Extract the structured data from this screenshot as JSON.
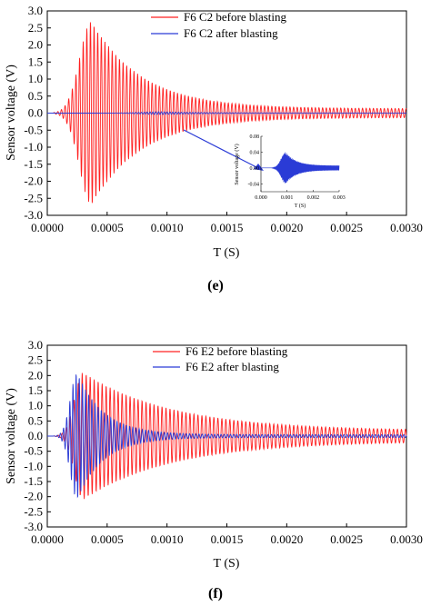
{
  "chart_data": [
    {
      "type": "line",
      "panel": "(e)",
      "xlabel": "T (S)",
      "ylabel": "Sensor voltage (V)",
      "xlim": [
        0,
        0.003
      ],
      "ylim": [
        -3.0,
        3.0
      ],
      "xticks": [
        "0.0000",
        "0.0005",
        "0.0010",
        "0.0015",
        "0.0020",
        "0.0025",
        "0.0030"
      ],
      "yticks": [
        "3.0",
        "2.5",
        "2.0",
        "1.5",
        "1.0",
        "0.5",
        "0.0",
        "-0.5",
        "-1.0",
        "-1.5",
        "-2.0",
        "-2.5",
        "-3.0"
      ],
      "legend_position": "top-right",
      "series": [
        {
          "name": "F6 C2 before blasting",
          "color": "#ff2020",
          "signal": {
            "start": 5e-05,
            "freq": 33000,
            "peak_time": 0.00037,
            "peak_amp": 2.7,
            "rise": 0.00014,
            "decay": 0.00042,
            "floor": 0.13
          }
        },
        {
          "name": "F6 C2 after blasting",
          "color": "#2a3bd6",
          "signal": {
            "start": 0.0004,
            "freq": 42000,
            "peak_time": 0.00095,
            "peak_amp": 0.04,
            "rise": 0.00025,
            "decay": 0.0004,
            "floor": 0.006
          }
        }
      ],
      "inset": {
        "ylabel": "Sensor voltage (V)",
        "xlabel": "T (S)",
        "xlim": [
          0,
          0.003
        ],
        "ylim": [
          -0.06,
          0.08
        ],
        "xticks": [
          "0.000",
          "0.001",
          "0.002",
          "0.003"
        ],
        "yticks": [
          "0.08",
          "0.04",
          "0.00",
          "-0.04"
        ],
        "series_color": "#2a3bd6"
      }
    },
    {
      "type": "line",
      "panel": "(f)",
      "xlabel": "T (S)",
      "ylabel": "Sensor voltage (V)",
      "xlim": [
        0,
        0.003
      ],
      "ylim": [
        -3.0,
        3.0
      ],
      "xticks": [
        "0.0000",
        "0.0005",
        "0.0010",
        "0.0015",
        "0.0020",
        "0.0025",
        "0.0030"
      ],
      "yticks": [
        "3.0",
        "2.5",
        "2.0",
        "1.5",
        "1.0",
        "0.5",
        "0.0",
        "-0.5",
        "-1.0",
        "-1.5",
        "-2.0",
        "-2.5",
        "-3.0"
      ],
      "legend_position": "top-right",
      "series": [
        {
          "name": "F6 E2 before blasting",
          "color": "#ff2020",
          "signal": {
            "start": 5e-05,
            "freq": 30000,
            "peak_time": 0.0003,
            "peak_amp": 2.1,
            "rise": 0.0001,
            "decay": 0.00075,
            "floor": 0.17
          }
        },
        {
          "name": "F6 E2 after blasting",
          "color": "#2a3bd6",
          "signal": {
            "start": 5e-05,
            "freq": 38000,
            "peak_time": 0.00025,
            "peak_amp": 2.1,
            "rise": 8e-05,
            "decay": 0.00022,
            "floor": 0.05
          }
        }
      ]
    }
  ]
}
